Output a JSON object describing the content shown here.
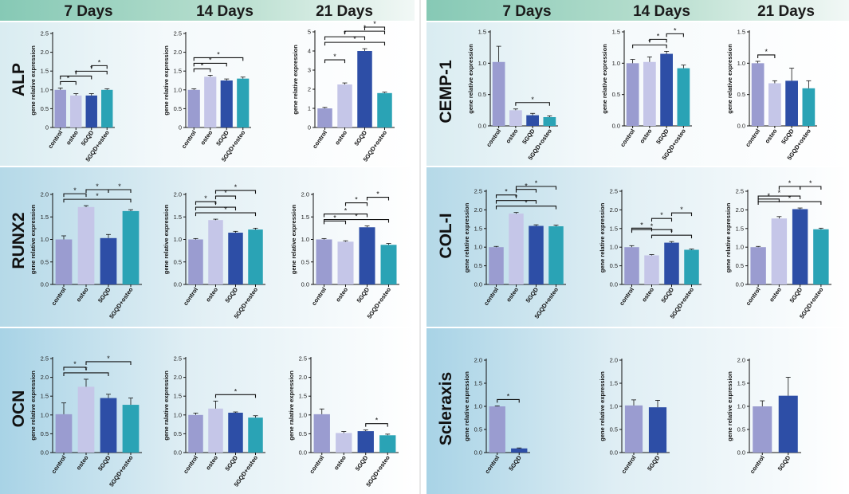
{
  "colors": {
    "control": "#9a9cd0",
    "osteo": "#c5c6e8",
    "5GQD": "#2d4ea6",
    "5GQD+osteo": "#2aa3b5",
    "header_bg": "#86c9b5",
    "row_top": "#d9ecf1",
    "row_mid": "#b5d9e8"
  },
  "headers": {
    "left": [
      "7 Days",
      "14 Days",
      "21 Days"
    ],
    "right": [
      "7 Days",
      "14 Days",
      "21 Days"
    ]
  },
  "y_label": "gene relative expression",
  "y_label_alt": "gene ralative expression",
  "chart_data": [
    {
      "gene": "ALP",
      "day": "7 Days",
      "type": "bar",
      "categories": [
        "control",
        "osteo",
        "5GQD",
        "5GQD+osteo"
      ],
      "values": [
        1.0,
        0.85,
        0.85,
        1.0
      ],
      "errors": [
        0.05,
        0.05,
        0.05,
        0.03
      ],
      "ylim": [
        0,
        2.5
      ],
      "yticks": [
        "0",
        "0.5",
        "1.0",
        "1.5",
        "2.0",
        "2.5"
      ],
      "sig": [
        [
          0,
          1
        ],
        [
          0,
          2
        ],
        [
          1,
          3
        ],
        [
          2,
          3
        ]
      ]
    },
    {
      "gene": "ALP",
      "day": "14 Days",
      "type": "bar",
      "categories": [
        "control",
        "osteo",
        "5GQD",
        "5GQD+osteo"
      ],
      "values": [
        1.0,
        1.35,
        1.25,
        1.3
      ],
      "errors": [
        0.03,
        0.04,
        0.04,
        0.04
      ],
      "ylim": [
        0,
        2.5
      ],
      "yticks": [
        "0",
        "0.5",
        "1.0",
        "1.5",
        "2.0",
        "2.5"
      ],
      "sig": [
        [
          0,
          1
        ],
        [
          0,
          2
        ],
        [
          0,
          3
        ]
      ]
    },
    {
      "gene": "ALP",
      "day": "21 Days",
      "type": "bar",
      "categories": [
        "control",
        "osteo",
        "5GQD",
        "5GQD+osteo"
      ],
      "values": [
        1.0,
        2.25,
        4.0,
        1.8
      ],
      "errors": [
        0.05,
        0.08,
        0.12,
        0.05
      ],
      "ylim": [
        0,
        5
      ],
      "yticks": [
        "0",
        "1",
        "2",
        "3",
        "4",
        "5"
      ],
      "sig": [
        [
          0,
          3
        ],
        [
          0,
          2
        ],
        [
          1,
          3
        ],
        [
          0,
          1
        ],
        [
          2,
          3
        ]
      ]
    },
    {
      "gene": "CEMP-1",
      "day": "7 Days",
      "type": "bar",
      "categories": [
        "control",
        "osteo",
        "5GQD",
        "5GQD+osteo"
      ],
      "values": [
        1.02,
        0.25,
        0.17,
        0.14
      ],
      "errors": [
        0.25,
        0.02,
        0.03,
        0.02
      ],
      "ylim": [
        0,
        1.5
      ],
      "yticks": [
        "0.0",
        "0.5",
        "1.0",
        "1.5"
      ],
      "sig": [
        [
          1,
          3
        ]
      ]
    },
    {
      "gene": "CEMP-1",
      "day": "14 Days",
      "type": "bar",
      "categories": [
        "control",
        "osteo",
        "5GQD",
        "5GQD+osteo"
      ],
      "values": [
        1.0,
        1.02,
        1.15,
        0.92
      ],
      "errors": [
        0.06,
        0.08,
        0.04,
        0.05
      ],
      "ylim": [
        0,
        1.5
      ],
      "yticks": [
        "0.0",
        "0.5",
        "1.0",
        "1.5"
      ],
      "sig": [
        [
          0,
          2
        ],
        [
          1,
          2
        ],
        [
          2,
          3
        ]
      ]
    },
    {
      "gene": "CEMP-1",
      "day": "21 Days",
      "type": "bar",
      "categories": [
        "control",
        "osteo",
        "5GQD",
        "5GQD+osteo"
      ],
      "values": [
        1.0,
        0.68,
        0.72,
        0.6
      ],
      "errors": [
        0.03,
        0.04,
        0.2,
        0.12
      ],
      "ylim": [
        0,
        1.5
      ],
      "yticks": [
        "0.0",
        "0.5",
        "1.0",
        "1.5"
      ],
      "sig": [
        [
          0,
          1
        ]
      ]
    },
    {
      "gene": "RUNX2",
      "day": "7 Days",
      "type": "bar",
      "categories": [
        "control",
        "osteo",
        "5GQD",
        "5GQD+osteo"
      ],
      "values": [
        1.0,
        1.72,
        1.03,
        1.63
      ],
      "errors": [
        0.08,
        0.03,
        0.08,
        0.03
      ],
      "ylim": [
        0,
        2.0
      ],
      "yticks": [
        "0.0",
        "0.5",
        "1.0",
        "1.5",
        "2.0"
      ],
      "sig": [
        [
          0,
          3
        ],
        [
          0,
          1
        ],
        [
          1,
          2
        ],
        [
          2,
          3
        ]
      ]
    },
    {
      "gene": "RUNX2",
      "day": "14 Days",
      "type": "bar",
      "categories": [
        "control",
        "osteo",
        "5GQD",
        "5GQD+osteo"
      ],
      "values": [
        1.0,
        1.43,
        1.15,
        1.22
      ],
      "errors": [
        0.02,
        0.02,
        0.03,
        0.03
      ],
      "ylim": [
        0,
        2.0
      ],
      "yticks": [
        "0.0",
        "0.5",
        "1.0",
        "1.5",
        "2.0"
      ],
      "sig": [
        [
          0,
          3
        ],
        [
          0,
          2
        ],
        [
          0,
          1
        ],
        [
          1,
          2
        ],
        [
          1,
          3
        ]
      ]
    },
    {
      "gene": "RUNX2",
      "day": "21 Days",
      "type": "bar",
      "categories": [
        "control",
        "osteo",
        "5GQD",
        "5GQD+osteo"
      ],
      "values": [
        1.0,
        0.95,
        1.27,
        0.88
      ],
      "errors": [
        0.02,
        0.02,
        0.03,
        0.03
      ],
      "ylim": [
        0,
        2.0
      ],
      "yticks": [
        "0.0",
        "0.5",
        "1.0",
        "1.5",
        "2.0"
      ],
      "sig": [
        [
          0,
          3
        ],
        [
          0,
          2
        ],
        [
          0,
          1
        ],
        [
          1,
          2
        ],
        [
          2,
          3
        ]
      ]
    },
    {
      "gene": "COL-I",
      "day": "7 Days",
      "type": "bar",
      "categories": [
        "control",
        "osteo",
        "5GQD",
        "5GQD+osteo"
      ],
      "values": [
        1.0,
        1.9,
        1.57,
        1.56
      ],
      "errors": [
        0.02,
        0.03,
        0.03,
        0.03
      ],
      "ylim": [
        0,
        2.5
      ],
      "yticks": [
        "0.0",
        "0.5",
        "1.0",
        "1.5",
        "2.0",
        "2.5"
      ],
      "sig": [
        [
          0,
          3
        ],
        [
          0,
          2
        ],
        [
          0,
          1
        ],
        [
          1,
          2
        ],
        [
          1,
          3
        ]
      ]
    },
    {
      "gene": "COL-I",
      "day": "14 Days",
      "type": "bar",
      "categories": [
        "control",
        "osteo",
        "5GQD",
        "5GQD+osteo"
      ],
      "values": [
        1.0,
        0.78,
        1.12,
        0.93
      ],
      "errors": [
        0.04,
        0.02,
        0.03,
        0.02
      ],
      "ylim": [
        0,
        2.5
      ],
      "yticks": [
        "0.0",
        "0.5",
        "1.0",
        "1.5",
        "2.0",
        "2.5"
      ],
      "sig": [
        [
          1,
          3
        ],
        [
          0,
          2
        ],
        [
          0,
          1
        ],
        [
          1,
          2
        ],
        [
          2,
          3
        ]
      ]
    },
    {
      "gene": "COL-I",
      "day": "21 Days",
      "type": "bar",
      "categories": [
        "control",
        "osteo",
        "5GQD",
        "5GQD+osteo"
      ],
      "values": [
        1.0,
        1.77,
        2.02,
        1.48
      ],
      "errors": [
        0.02,
        0.05,
        0.03,
        0.03
      ],
      "ylim": [
        0,
        2.5
      ],
      "yticks": [
        "0.0",
        "0.5",
        "1.0",
        "1.5",
        "2.0",
        "2.5"
      ],
      "sig": [
        [
          0,
          3
        ],
        [
          0,
          2
        ],
        [
          0,
          1
        ],
        [
          1,
          2
        ],
        [
          2,
          3
        ]
      ]
    },
    {
      "gene": "OCN",
      "day": "7 Days",
      "type": "bar",
      "categories": [
        "control",
        "osteo",
        "5GQD",
        "5GQD+osteo"
      ],
      "values": [
        1.02,
        1.75,
        1.45,
        1.27
      ],
      "errors": [
        0.3,
        0.2,
        0.1,
        0.18
      ],
      "ylim": [
        0,
        2.5
      ],
      "yticks": [
        "0.0",
        "0.5",
        "1.0",
        "1.5",
        "2.0",
        "2.5"
      ],
      "sig": [
        [
          0,
          2
        ],
        [
          0,
          1
        ],
        [
          1,
          3
        ]
      ]
    },
    {
      "gene": "OCN",
      "day": "14 Days",
      "type": "bar",
      "categories": [
        "control",
        "osteo",
        "5GQD",
        "5GQD+osteo"
      ],
      "values": [
        1.0,
        1.17,
        1.06,
        0.93
      ],
      "errors": [
        0.05,
        0.2,
        0.02,
        0.05
      ],
      "ylim": [
        0,
        2.5
      ],
      "yticks": [
        "0.0",
        "0.5",
        "1.0",
        "1.5",
        "2.0",
        "2.5"
      ],
      "sig": [
        [
          1,
          3
        ]
      ]
    },
    {
      "gene": "OCN",
      "day": "21 Days",
      "type": "bar",
      "categories": [
        "control",
        "osteo",
        "5GQD",
        "5GQD+osteo"
      ],
      "values": [
        1.02,
        0.52,
        0.57,
        0.46
      ],
      "errors": [
        0.14,
        0.04,
        0.03,
        0.03
      ],
      "ylim": [
        0,
        2.5
      ],
      "yticks": [
        "0.0",
        "0.5",
        "1.0",
        "1.5",
        "2.0",
        "2.5"
      ],
      "sig": [
        [
          2,
          3
        ]
      ]
    },
    {
      "gene": "Scleraxis",
      "day": "7 Days",
      "type": "bar",
      "categories": [
        "control",
        "5GQD"
      ],
      "values": [
        1.0,
        0.09
      ],
      "errors": [
        0.01,
        0.01
      ],
      "ylim": [
        0,
        2.0
      ],
      "yticks": [
        "0.0",
        "0.5",
        "1.0",
        "1.5",
        "2.0"
      ],
      "sig": [
        [
          0,
          1
        ]
      ]
    },
    {
      "gene": "Scleraxis",
      "day": "14 Days",
      "type": "bar",
      "categories": [
        "control",
        "5GQD"
      ],
      "values": [
        1.02,
        0.98
      ],
      "errors": [
        0.12,
        0.15
      ],
      "ylim": [
        0,
        2.0
      ],
      "yticks": [
        "0.0",
        "0.5",
        "1.0",
        "1.5",
        "2.0"
      ],
      "sig": []
    },
    {
      "gene": "Scleraxis",
      "day": "21 Days",
      "type": "bar",
      "categories": [
        "control",
        "5GQD"
      ],
      "values": [
        1.0,
        1.23
      ],
      "errors": [
        0.12,
        0.4
      ],
      "ylim": [
        0,
        2.0
      ],
      "yticks": [
        "0.0",
        "0.5",
        "1.0",
        "1.5",
        "2.0"
      ],
      "sig": []
    }
  ]
}
